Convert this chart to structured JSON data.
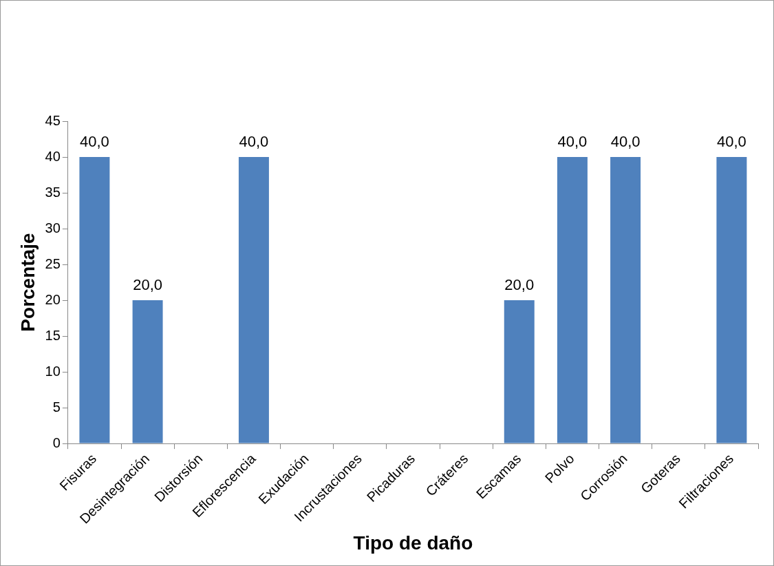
{
  "chart_data": {
    "type": "bar",
    "xlabel": "Tipo de daño",
    "ylabel": "Porcentaje",
    "categories": [
      "Fisuras",
      "Desintegración",
      "Distorsión",
      "Eflorescencia",
      "Exudación",
      "Incrustaciones",
      "Picaduras",
      "Cráteres",
      "Escamas",
      "Polvo",
      "Corrosión",
      "Goteras",
      "Filtraciones"
    ],
    "values": [
      40,
      20,
      0,
      40,
      0,
      0,
      0,
      0,
      20,
      40,
      40,
      0,
      40
    ],
    "value_labels": [
      "40,0",
      "20,0",
      null,
      "40,0",
      null,
      null,
      null,
      null,
      "20,0",
      "40,0",
      "40,0",
      null,
      "40,0"
    ],
    "color": "#4f81bd",
    "ylim": [
      0,
      45
    ],
    "yticks": [
      0,
      5,
      10,
      15,
      20,
      25,
      30,
      35,
      40,
      45
    ],
    "grid": false,
    "legend": false
  }
}
